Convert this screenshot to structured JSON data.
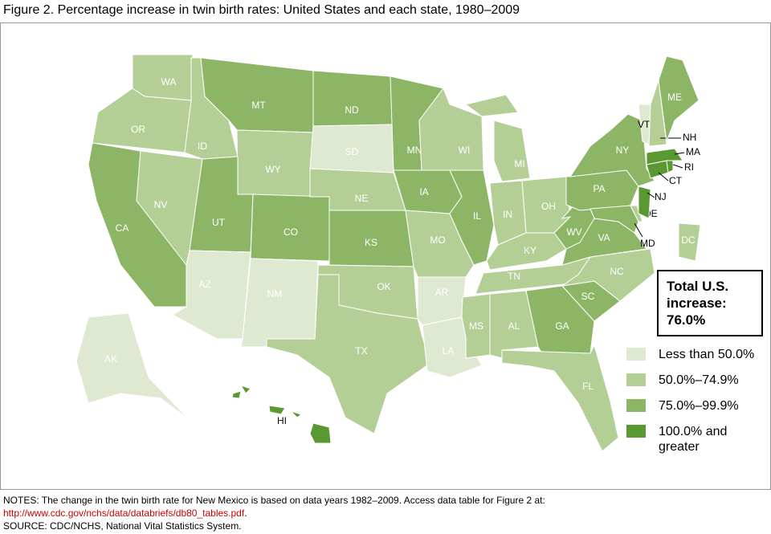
{
  "title": "Figure 2. Percentage increase in twin birth rates: United States and each state, 1980–2009",
  "total": "Total U.S. increase: 76.0%",
  "legend": {
    "items": [
      {
        "label": "Less than 50.0%",
        "color": "#dfe8d1"
      },
      {
        "label": "50.0%–74.9%",
        "color": "#b4cf96"
      },
      {
        "label": "75.0%–99.9%",
        "color": "#8cb665"
      },
      {
        "label": "100.0% and greater",
        "color": "#5a9932"
      }
    ]
  },
  "states": [
    {
      "label": "WA",
      "class": 1
    },
    {
      "label": "OR",
      "class": 1
    },
    {
      "label": "CA",
      "class": 2
    },
    {
      "label": "NV",
      "class": 1
    },
    {
      "label": "ID",
      "class": 1
    },
    {
      "label": "MT",
      "class": 2
    },
    {
      "label": "WY",
      "class": 1
    },
    {
      "label": "UT",
      "class": 2
    },
    {
      "label": "AZ",
      "class": 0
    },
    {
      "label": "CO",
      "class": 2
    },
    {
      "label": "NM",
      "class": 0
    },
    {
      "label": "ND",
      "class": 2
    },
    {
      "label": "SD",
      "class": 0
    },
    {
      "label": "NE",
      "class": 1
    },
    {
      "label": "KS",
      "class": 2
    },
    {
      "label": "OK",
      "class": 1
    },
    {
      "label": "TX",
      "class": 1
    },
    {
      "label": "MN",
      "class": 2
    },
    {
      "label": "IA",
      "class": 2
    },
    {
      "label": "MO",
      "class": 1
    },
    {
      "label": "AR",
      "class": 0
    },
    {
      "label": "LA",
      "class": 0
    },
    {
      "label": "WI",
      "class": 1
    },
    {
      "label": "IL",
      "class": 2
    },
    {
      "label": "MI",
      "class": 1
    },
    {
      "label": "IN",
      "class": 1
    },
    {
      "label": "OH",
      "class": 1
    },
    {
      "label": "KY",
      "class": 1
    },
    {
      "label": "TN",
      "class": 1
    },
    {
      "label": "MS",
      "class": 1
    },
    {
      "label": "AL",
      "class": 1
    },
    {
      "label": "GA",
      "class": 2
    },
    {
      "label": "FL",
      "class": 1
    },
    {
      "label": "SC",
      "class": 2
    },
    {
      "label": "NC",
      "class": 1
    },
    {
      "label": "VA",
      "class": 2
    },
    {
      "label": "WV",
      "class": 2
    },
    {
      "label": "PA",
      "class": 2
    },
    {
      "label": "NY",
      "class": 2
    },
    {
      "label": "MD",
      "class": 2
    },
    {
      "label": "DE",
      "class": 1
    },
    {
      "label": "NJ",
      "class": 3
    },
    {
      "label": "CT",
      "class": 3
    },
    {
      "label": "RI",
      "class": 3
    },
    {
      "label": "MA",
      "class": 3
    },
    {
      "label": "VT",
      "class": 0
    },
    {
      "label": "NH",
      "class": 1
    },
    {
      "label": "ME",
      "class": 2
    },
    {
      "label": "DC",
      "class": 1
    },
    {
      "label": "AK",
      "class": 0
    },
    {
      "label": "HI",
      "class": 3
    }
  ],
  "notes": {
    "line1": "NOTES: The change in the twin birth rate for New Mexico is based on data years 1982–2009. Access data table for Figure 2 at:",
    "url": "http://www.cdc.gov/nchs/data/databriefs/db80_tables.pdf",
    "url_end": ".",
    "source": "SOURCE: CDC/NCHS, National Vital Statistics System."
  }
}
